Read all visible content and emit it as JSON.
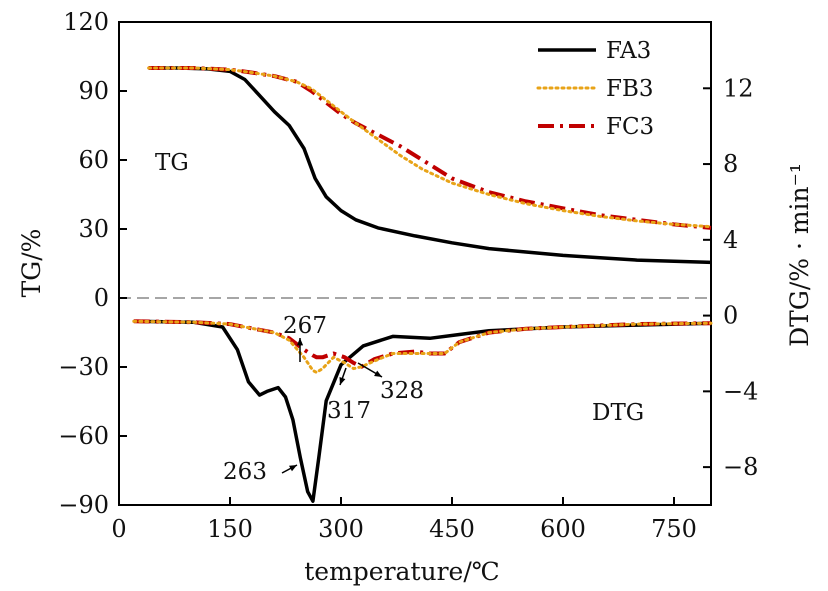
{
  "chart_data": {
    "type": "line",
    "xlabel": "temperature/℃",
    "ylabel_left": "TG/%",
    "ylabel_right": "DTG/% · min⁻¹",
    "xlim": [
      0,
      800
    ],
    "ylim_left": [
      -90,
      120
    ],
    "ylim_right": [
      -10,
      15.5
    ],
    "xticks": [
      "0",
      "150",
      "300",
      "450",
      "600",
      "750"
    ],
    "xtick_values": [
      0,
      150,
      300,
      450,
      600,
      750
    ],
    "yticks_left": [
      "120",
      "90",
      "60",
      "30",
      "0",
      "−30",
      "−60",
      "−90"
    ],
    "ytick_values_left": [
      120,
      90,
      60,
      30,
      0,
      -30,
      -60,
      -90
    ],
    "yticks_right": [
      "12",
      "8",
      "4",
      "0",
      "−4",
      "−8"
    ],
    "ytick_values_right": [
      12,
      8,
      4,
      0,
      -4,
      -8
    ],
    "zero_line": 0,
    "section_labels": {
      "tg": "TG",
      "dtg": "DTG"
    },
    "colors": {
      "FA3": "#000000",
      "FB3": "#e8a317",
      "FC3": "#c00000",
      "zero_line": "#888888"
    },
    "legend": [
      "FA3",
      "FB3",
      "FC3"
    ],
    "legend_position": "top-right",
    "annotations": [
      {
        "text": "267",
        "x": 267,
        "y": -25
      },
      {
        "text": "263",
        "x": 263,
        "y": -73
      },
      {
        "text": "317",
        "x": 317,
        "y": -28
      },
      {
        "text": "328",
        "x": 328,
        "y": -28
      }
    ],
    "tg_series": [
      {
        "name": "FA3",
        "x": [
          40,
          80,
          120,
          150,
          170,
          190,
          210,
          230,
          250,
          265,
          280,
          300,
          320,
          350,
          400,
          450,
          500,
          550,
          600,
          650,
          700,
          750,
          800
        ],
        "y": [
          100,
          100,
          99.6,
          98.5,
          95,
          88,
          81,
          75,
          65,
          52,
          44,
          38,
          34,
          30.5,
          27,
          24,
          21.5,
          20,
          18.5,
          17.5,
          16.5,
          16,
          15.5
        ]
      },
      {
        "name": "FB3",
        "x": [
          40,
          100,
          150,
          180,
          210,
          240,
          260,
          280,
          300,
          320,
          350,
          380,
          410,
          450,
          500,
          550,
          600,
          650,
          700,
          750,
          800
        ],
        "y": [
          100,
          100,
          99.3,
          98,
          96.5,
          94,
          91,
          86,
          81,
          76,
          69,
          62,
          56,
          50,
          45,
          41,
          38,
          35.5,
          33.5,
          32,
          31
        ]
      },
      {
        "name": "FC3",
        "x": [
          40,
          100,
          150,
          180,
          210,
          240,
          260,
          280,
          300,
          320,
          350,
          380,
          410,
          450,
          500,
          550,
          600,
          650,
          700,
          750,
          800
        ],
        "y": [
          100,
          100,
          99.3,
          98,
          96.5,
          94,
          90,
          85,
          80,
          76,
          71,
          66,
          60,
          52,
          46,
          42,
          39,
          36,
          34,
          32,
          30.5
        ]
      }
    ],
    "dtg_series": [
      {
        "name": "FA3",
        "x": [
          20,
          100,
          140,
          160,
          175,
          190,
          200,
          215,
          225,
          235,
          245,
          255,
          262,
          270,
          280,
          300,
          330,
          370,
          420,
          460,
          500,
          600,
          700,
          800
        ],
        "y": [
          -0.3,
          -0.35,
          -0.6,
          -1.8,
          -3.5,
          -4.2,
          -4,
          -3.8,
          -4.3,
          -5.5,
          -7.5,
          -9.3,
          -9.8,
          -7.5,
          -4.5,
          -2.6,
          -1.6,
          -1.1,
          -1.2,
          -1.0,
          -0.8,
          -0.6,
          -0.5,
          -0.4
        ]
      },
      {
        "name": "FB3",
        "x": [
          20,
          100,
          150,
          170,
          190,
          210,
          230,
          250,
          262,
          267,
          275,
          290,
          305,
          317,
          328,
          345,
          370,
          400,
          420,
          440,
          460,
          500,
          550,
          600,
          700,
          800
        ],
        "y": [
          -0.3,
          -0.35,
          -0.45,
          -0.6,
          -0.75,
          -0.9,
          -1.3,
          -2.2,
          -2.9,
          -3.0,
          -2.8,
          -2.2,
          -2.5,
          -2.8,
          -2.7,
          -2.4,
          -2.0,
          -2.0,
          -2.0,
          -2.0,
          -1.4,
          -0.9,
          -0.7,
          -0.6,
          -0.45,
          -0.4
        ]
      },
      {
        "name": "FC3",
        "x": [
          20,
          100,
          150,
          170,
          190,
          210,
          230,
          250,
          262,
          267,
          275,
          290,
          305,
          317,
          328,
          345,
          370,
          400,
          420,
          440,
          460,
          500,
          550,
          600,
          700,
          800
        ],
        "y": [
          -0.3,
          -0.35,
          -0.45,
          -0.6,
          -0.75,
          -0.9,
          -1.2,
          -1.8,
          -2.1,
          -2.2,
          -2.2,
          -2.0,
          -2.2,
          -2.5,
          -2.7,
          -2.3,
          -2.0,
          -1.9,
          -2.0,
          -2.0,
          -1.4,
          -0.9,
          -0.7,
          -0.6,
          -0.45,
          -0.4
        ]
      }
    ]
  }
}
